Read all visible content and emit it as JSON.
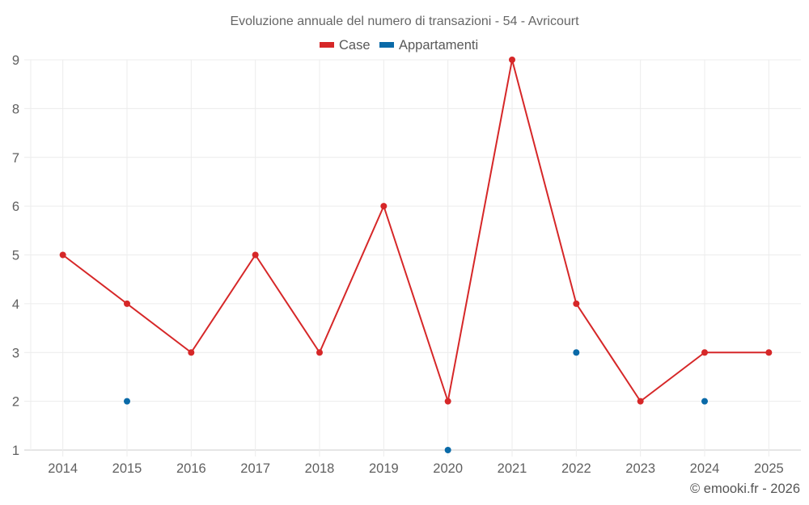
{
  "chart_data": {
    "type": "line",
    "title": "Evoluzione annuale del numero di transazioni - 54 - Avricourt",
    "xlabel": "",
    "ylabel": "",
    "categories": [
      "2014",
      "2015",
      "2016",
      "2017",
      "2018",
      "2019",
      "2020",
      "2021",
      "2022",
      "2023",
      "2024",
      "2025"
    ],
    "series": [
      {
        "name": "Case",
        "color": "#d62728",
        "values": [
          5,
          4,
          3,
          5,
          3,
          6,
          2,
          9,
          4,
          2,
          3,
          3
        ]
      },
      {
        "name": "Appartamenti",
        "color": "#0a6aa8",
        "values": [
          null,
          2,
          null,
          null,
          null,
          null,
          1,
          null,
          3,
          null,
          2,
          null
        ]
      }
    ],
    "ylim": [
      1,
      9
    ],
    "yticks": [
      1,
      2,
      3,
      4,
      5,
      6,
      7,
      8,
      9
    ],
    "grid": true,
    "legend_position": "top-center"
  },
  "credit": "© emooki.fr - 2026"
}
